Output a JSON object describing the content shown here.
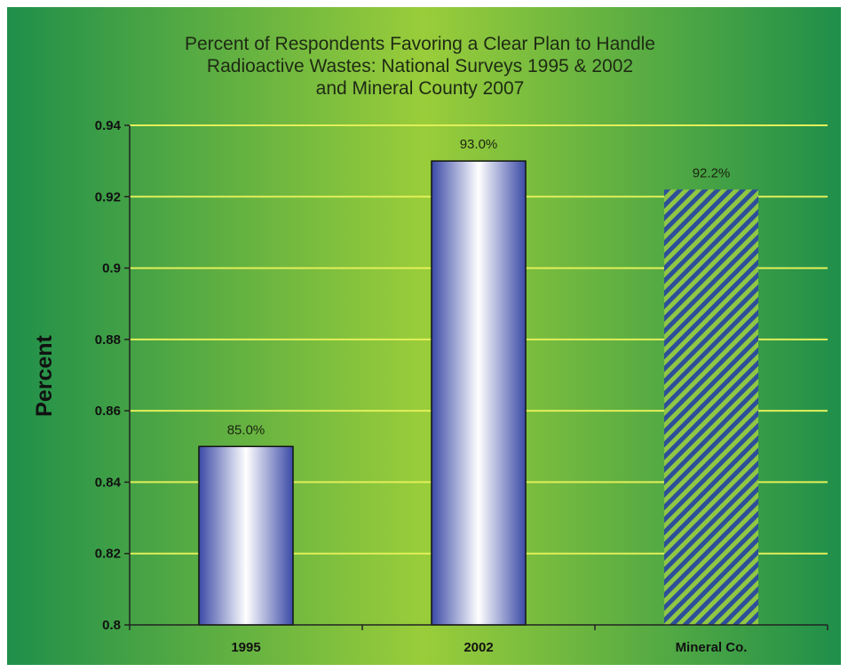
{
  "chart_data": {
    "type": "bar",
    "title": [
      "Percent of Respondents Favoring a Clear Plan to Handle",
      "Radioactive Wastes: National Surveys 1995 & 2002",
      "and Mineral County 2007"
    ],
    "categories": [
      "1995",
      "2002",
      "Mineral Co."
    ],
    "values": [
      0.85,
      0.93,
      0.922
    ],
    "data_labels": [
      "85.0%",
      "93.0%",
      "92.2%"
    ],
    "xlabel": "",
    "ylabel": "Percent",
    "ylim": [
      0.8,
      0.94
    ],
    "yticks": [
      0.8,
      0.82,
      0.84,
      0.86,
      0.88,
      0.9,
      0.92,
      0.94
    ],
    "ytick_labels": [
      "0.8",
      "0.82",
      "0.84",
      "0.86",
      "0.88",
      "0.9",
      "0.92",
      "0.94"
    ],
    "grid": true,
    "legend": "none",
    "colors": {
      "background_center": "#9acd3a",
      "background_edge": "#1f8f4a",
      "gridline": "#e2ef5a",
      "bar_edge": "#3b4aa6",
      "bar_center": "#ffffff",
      "hatch": "#2d4f9a"
    }
  }
}
